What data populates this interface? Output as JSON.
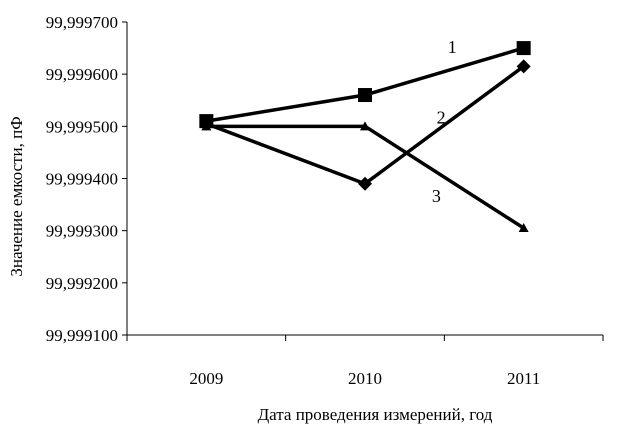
{
  "chart_data": {
    "type": "line",
    "title": "",
    "xlabel": "Дата проведения измерений, год",
    "ylabel": "Значение емкости, пФ",
    "categories": [
      "2009",
      "2010",
      "2011"
    ],
    "ylim": [
      99.9991,
      99.9997
    ],
    "yticks": [
      99.9991,
      99.9992,
      99.9993,
      99.9994,
      99.9995,
      99.9996,
      99.9997
    ],
    "ytick_labels": [
      "99,999100",
      "99,999200",
      "99,999300",
      "99,999400",
      "99,999500",
      "99,999600",
      "99,999700"
    ],
    "grid": false,
    "legend": "none",
    "series": [
      {
        "name": "1",
        "marker": "square",
        "color": "#000000",
        "values": [
          99.99951,
          99.99956,
          99.99965
        ]
      },
      {
        "name": "2",
        "marker": "diamond",
        "color": "#000000",
        "values": [
          99.999505,
          99.99939,
          99.999615
        ]
      },
      {
        "name": "3",
        "marker": "triangle",
        "color": "#000000",
        "values": [
          99.9995,
          99.9995,
          99.999305
        ]
      }
    ]
  }
}
